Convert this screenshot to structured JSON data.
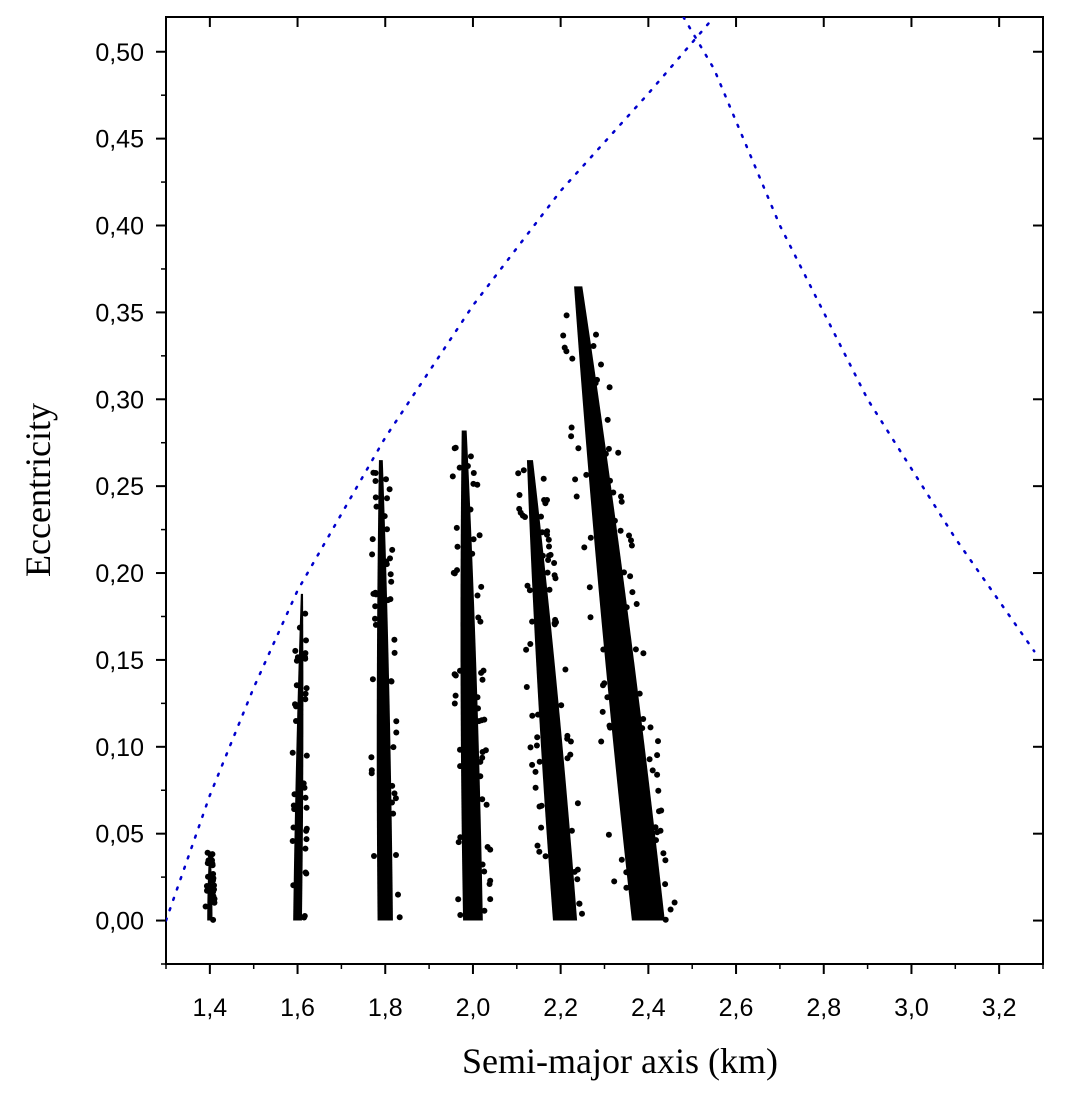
{
  "chart_data": {
    "type": "scatter",
    "title": "",
    "xlabel": "Semi-major axis (km)",
    "ylabel": "Eccentricity",
    "xlim": [
      1.3,
      3.3
    ],
    "ylim": [
      -0.025,
      0.52
    ],
    "x_ticks": [
      1.4,
      1.6,
      1.8,
      2.0,
      2.2,
      2.4,
      2.6,
      2.8,
      3.0,
      3.2
    ],
    "x_tick_labels": [
      "1,4",
      "1,6",
      "1,8",
      "2,0",
      "2,2",
      "2,4",
      "2,6",
      "2,8",
      "3,0",
      "3,2"
    ],
    "y_ticks": [
      0.0,
      0.05,
      0.1,
      0.15,
      0.2,
      0.25,
      0.3,
      0.35,
      0.4,
      0.45,
      0.5
    ],
    "y_tick_labels": [
      "0,00",
      "0,05",
      "0,10",
      "0,15",
      "0,20",
      "0,25",
      "0,30",
      "0,35",
      "0,40",
      "0,45",
      "0,50"
    ],
    "grid": false,
    "legend": "none",
    "colors": {
      "points": "#000000",
      "curves": "#0000cc",
      "axes": "#000000"
    },
    "clusters": [
      {
        "a_base": 1.4,
        "a_top": 1.4,
        "width": 0.012,
        "e_max": 0.04
      },
      {
        "a_base": 1.6,
        "a_top": 1.61,
        "width": 0.02,
        "e_max": 0.188
      },
      {
        "a_base": 1.8,
        "a_top": 1.79,
        "width": 0.035,
        "e_max": 0.265
      },
      {
        "a_base": 2.0,
        "a_top": 1.98,
        "width": 0.045,
        "e_max": 0.282
      },
      {
        "a_base": 2.21,
        "a_top": 2.13,
        "width": 0.055,
        "e_max": 0.265
      },
      {
        "a_base": 2.4,
        "a_top": 2.24,
        "width": 0.075,
        "e_max": 0.365
      }
    ],
    "boundary_curves": [
      {
        "points": [
          [
            1.3,
            0.0
          ],
          [
            1.4,
            0.072
          ],
          [
            1.5,
            0.134
          ],
          [
            1.6,
            0.19
          ],
          [
            1.8,
            0.278
          ],
          [
            2.0,
            0.354
          ],
          [
            2.2,
            0.42
          ],
          [
            2.4,
            0.476
          ],
          [
            2.55,
            0.52
          ]
        ]
      },
      {
        "points": [
          [
            2.48,
            0.52
          ],
          [
            2.55,
            0.49
          ],
          [
            2.7,
            0.4
          ],
          [
            2.9,
            0.3
          ],
          [
            3.1,
            0.22
          ],
          [
            3.28,
            0.155
          ]
        ]
      }
    ]
  }
}
